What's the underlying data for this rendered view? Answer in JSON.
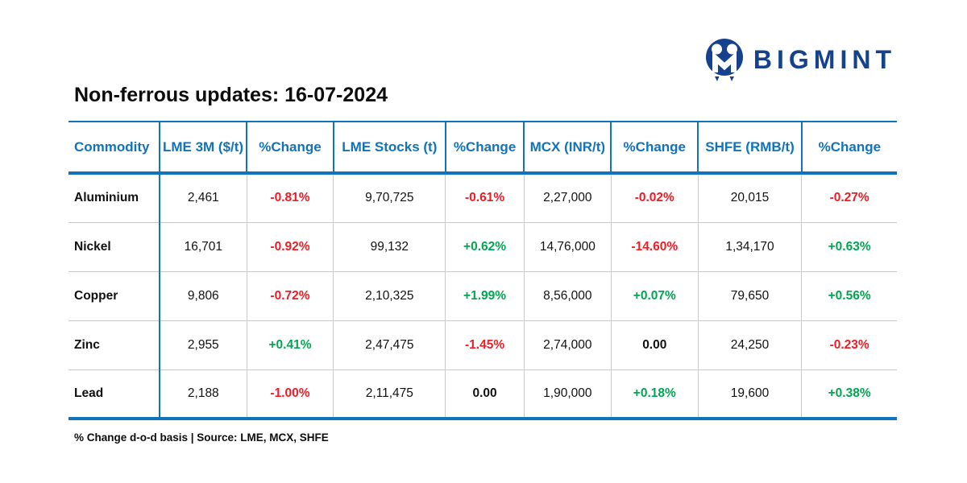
{
  "logo": {
    "brand": "BIGMINT"
  },
  "title": "Non-ferrous updates: 16-07-2024",
  "table": {
    "columns": [
      "Commodity",
      "LME 3M ($/t)",
      "%Change",
      "LME Stocks (t)",
      "%Change",
      "MCX (INR/t)",
      "%Change",
      "SHFE (RMB/t)",
      "%Change"
    ],
    "rows": [
      {
        "commodity": "Aluminium",
        "values": [
          "2,461",
          "-0.81%",
          "9,70,725",
          "-0.61%",
          "2,27,000",
          "-0.02%",
          "20,015",
          "-0.27%"
        ]
      },
      {
        "commodity": "Nickel",
        "values": [
          "16,701",
          "-0.92%",
          "99,132",
          "+0.62%",
          "14,76,000",
          "-14.60%",
          "1,34,170",
          "+0.63%"
        ]
      },
      {
        "commodity": "Copper",
        "values": [
          "9,806",
          "-0.72%",
          "2,10,325",
          "+1.99%",
          "8,56,000",
          "+0.07%",
          "79,650",
          "+0.56%"
        ]
      },
      {
        "commodity": "Zinc",
        "values": [
          "2,955",
          "+0.41%",
          "2,47,475",
          "-1.45%",
          "2,74,000",
          "0.00",
          "24,250",
          "-0.23%"
        ]
      },
      {
        "commodity": "Lead",
        "values": [
          "2,188",
          "-1.00%",
          "2,11,475",
          "0.00",
          "1,90,000",
          "+0.18%",
          "19,600",
          "+0.38%"
        ]
      }
    ]
  },
  "footnote": "% Change d-o-d basis | Source: LME, MCX, SHFE",
  "colors": {
    "header_blue": "#1173b9",
    "brand_navy": "#16418c",
    "negative": "#ee1c25",
    "positive": "#00a651",
    "neutral": "#111111"
  },
  "chart_data": {
    "type": "table",
    "title": "Non-ferrous updates: 16-07-2024",
    "columns": [
      "Commodity",
      "LME 3M ($/t)",
      "%Change",
      "LME Stocks (t)",
      "%Change",
      "MCX (INR/t)",
      "%Change",
      "SHFE (RMB/t)",
      "%Change"
    ],
    "rows": [
      [
        "Aluminium",
        "2,461",
        "-0.81%",
        "9,70,725",
        "-0.61%",
        "2,27,000",
        "-0.02%",
        "20,015",
        "-0.27%"
      ],
      [
        "Nickel",
        "16,701",
        "-0.92%",
        "99,132",
        "+0.62%",
        "14,76,000",
        "-14.60%",
        "1,34,170",
        "+0.63%"
      ],
      [
        "Copper",
        "9,806",
        "-0.72%",
        "2,10,325",
        "+1.99%",
        "8,56,000",
        "+0.07%",
        "79,650",
        "+0.56%"
      ],
      [
        "Zinc",
        "2,955",
        "+0.41%",
        "2,47,475",
        "-1.45%",
        "2,74,000",
        "0.00",
        "24,250",
        "-0.23%"
      ],
      [
        "Lead",
        "2,188",
        "-1.00%",
        "2,11,475",
        "0.00",
        "1,90,000",
        "+0.18%",
        "19,600",
        "+0.38%"
      ]
    ],
    "note": "% Change d-o-d basis | Source: LME, MCX, SHFE",
    "color_coding": "negative changes red, positive changes green, zero black"
  }
}
